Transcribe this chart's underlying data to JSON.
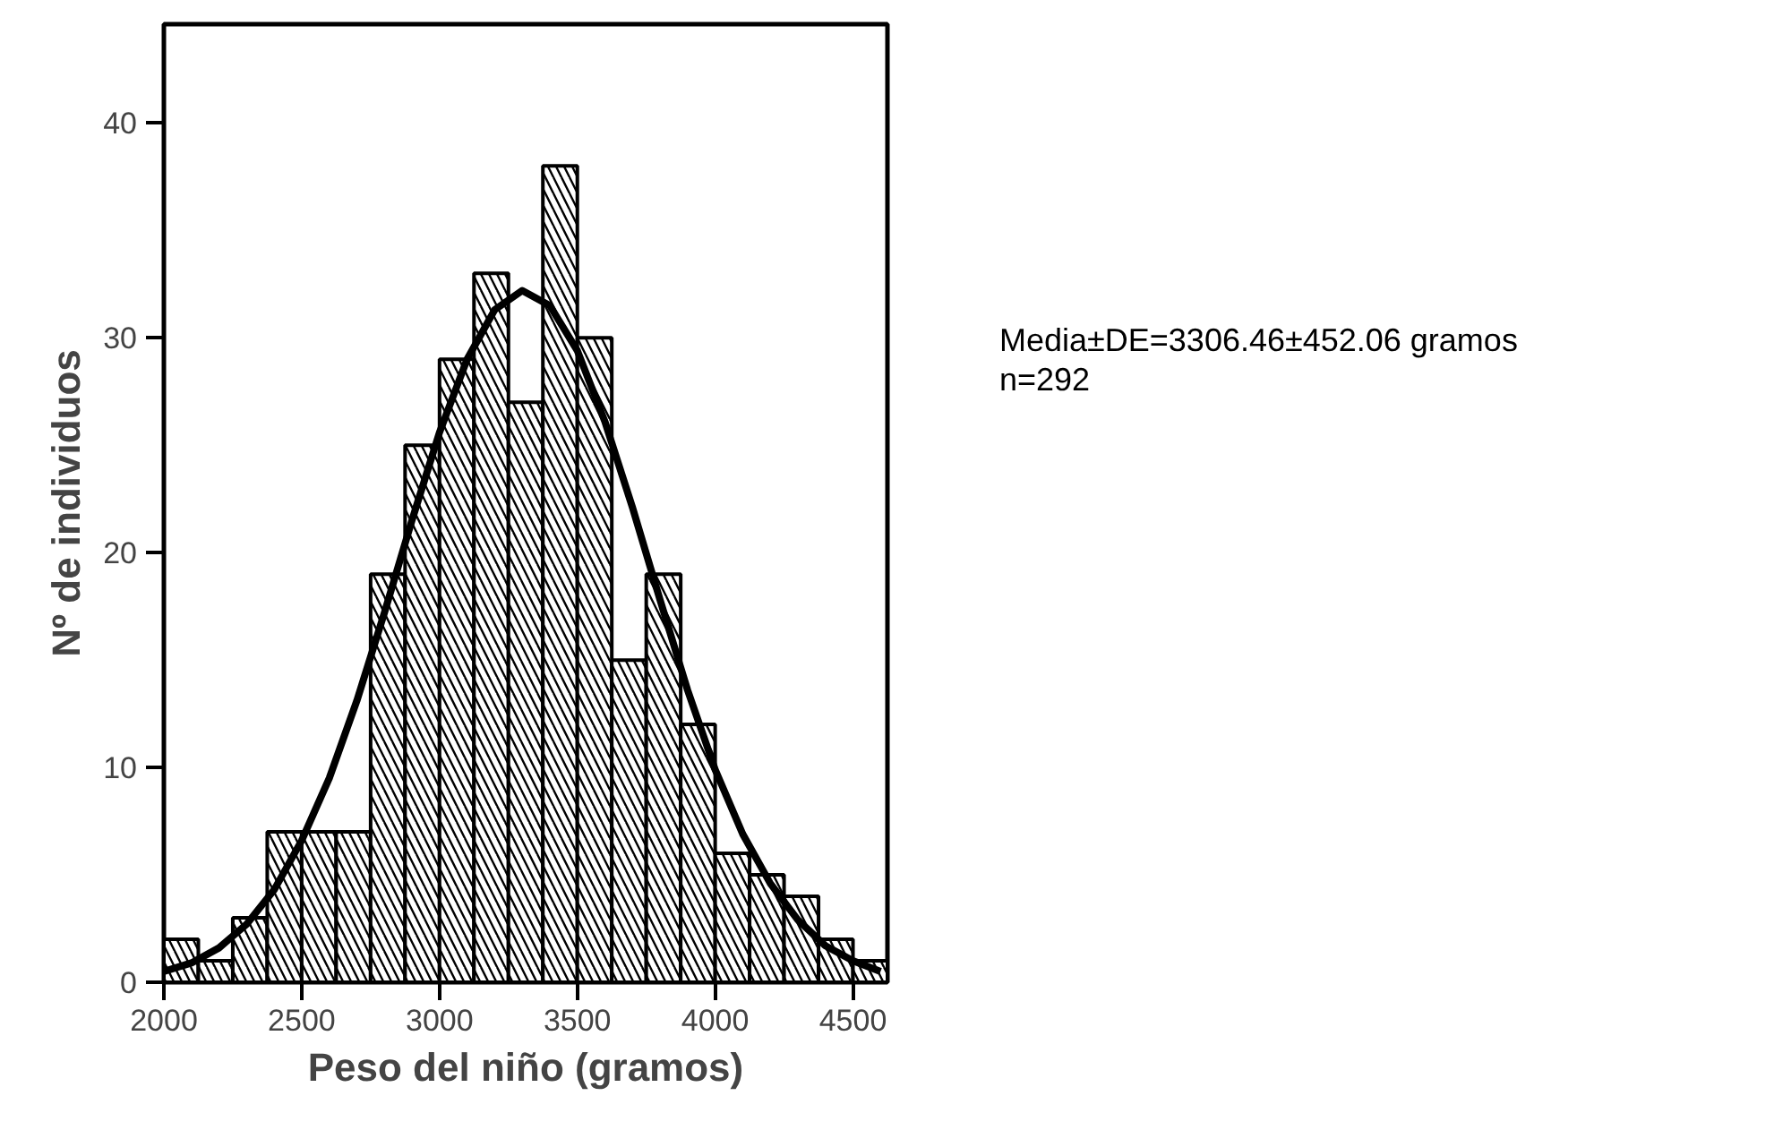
{
  "chart_data": {
    "type": "histogram",
    "xlabel": "Peso del niño (gramos)",
    "ylabel": "Nº de individuos",
    "bins": [
      2000,
      2125,
      2250,
      2375,
      2500,
      2625,
      2750,
      2875,
      3000,
      3125,
      3250,
      3375,
      3500,
      3625,
      3750,
      3875,
      4000,
      4125,
      4250,
      4375,
      4500,
      4625
    ],
    "values": [
      2,
      1,
      3,
      7,
      7,
      7,
      19,
      25,
      29,
      33,
      27,
      38,
      30,
      15,
      19,
      12,
      6,
      5,
      4,
      2,
      1
    ],
    "series": [
      {
        "type": "line",
        "color": "#000000",
        "x": [
          2000,
          2100,
          2200,
          2300,
          2400,
          2500,
          2600,
          2700,
          2800,
          2900,
          3000,
          3100,
          3200,
          3300,
          3400,
          3500,
          3600,
          3700,
          3800,
          3900,
          4000,
          4100,
          4200,
          4300,
          4400,
          4500,
          4600
        ],
        "values": [
          0.5,
          0.9,
          1.6,
          2.7,
          4.3,
          6.6,
          9.5,
          13.1,
          17.2,
          21.5,
          25.6,
          29.0,
          31.3,
          32.2,
          31.5,
          29.4,
          26.1,
          22.1,
          17.8,
          13.6,
          9.9,
          6.9,
          4.6,
          2.9,
          1.7,
          1.0,
          0.5
        ]
      }
    ],
    "xlim": [
      2000,
      4625
    ],
    "ylim": [
      0,
      44.6
    ],
    "xticks": [
      2000,
      2500,
      3000,
      3500,
      4000,
      4500
    ],
    "yticks": [
      0,
      10,
      20,
      30,
      40
    ],
    "grid": false,
    "annotations": [
      "Media±DE=3306.46±452.06 gramos",
      "n=292"
    ]
  }
}
